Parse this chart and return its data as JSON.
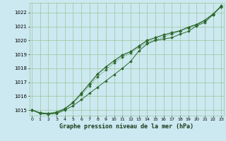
{
  "title": "Graphe pression niveau de la mer (hPa)",
  "bg_color": "#cce8f0",
  "grid_color": "#99c899",
  "line_color": "#2d6a2d",
  "marker_color": "#2d6a2d",
  "xlim": [
    0,
    23
  ],
  "ylim": [
    1014.6,
    1022.7
  ],
  "yticks": [
    1015,
    1016,
    1017,
    1018,
    1019,
    1020,
    1021,
    1022
  ],
  "xticks": [
    0,
    1,
    2,
    3,
    4,
    5,
    6,
    7,
    8,
    9,
    10,
    11,
    12,
    13,
    14,
    15,
    16,
    17,
    18,
    19,
    20,
    21,
    22,
    23
  ],
  "series_upper": [
    1015.0,
    1014.8,
    1014.75,
    1014.8,
    1015.05,
    1015.5,
    1016.1,
    1016.75,
    1017.4,
    1017.9,
    1018.4,
    1018.8,
    1019.1,
    1019.5,
    1019.85,
    1020.05,
    1020.25,
    1020.45,
    1020.65,
    1020.9,
    1021.1,
    1021.4,
    1021.85,
    1022.4
  ],
  "series_mid": [
    1015.0,
    1014.8,
    1014.75,
    1014.85,
    1015.1,
    1015.55,
    1016.2,
    1016.9,
    1017.6,
    1018.1,
    1018.55,
    1018.95,
    1019.2,
    1019.6,
    1020.0,
    1020.2,
    1020.4,
    1020.55,
    1020.7,
    1020.95,
    1021.15,
    1021.45,
    1021.9,
    1022.45
  ],
  "series_lower": [
    1015.0,
    1014.75,
    1014.7,
    1014.75,
    1015.0,
    1015.3,
    1015.75,
    1016.2,
    1016.65,
    1017.1,
    1017.55,
    1018.0,
    1018.5,
    1019.25,
    1019.75,
    1020.0,
    1020.1,
    1020.2,
    1020.45,
    1020.65,
    1021.05,
    1021.3,
    1021.85,
    1022.5
  ]
}
